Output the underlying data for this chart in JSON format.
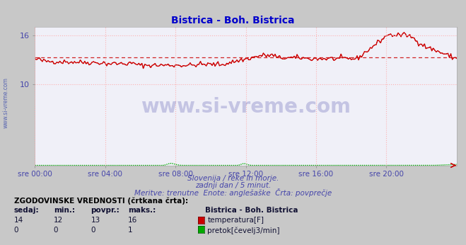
{
  "title": "Bistrica - Boh. Bistrica",
  "title_color": "#0000cc",
  "bg_color": "#c8c8c8",
  "plot_bg_color": "#f0f0f8",
  "grid_color": "#ffaaaa",
  "xlabel_color": "#4444aa",
  "ylabel_ticks": [
    10,
    16
  ],
  "ylim": [
    0,
    17
  ],
  "xlim": [
    0,
    288
  ],
  "xtick_positions": [
    0,
    48,
    96,
    144,
    192,
    240
  ],
  "xtick_labels": [
    "sre 00:00",
    "sre 04:00",
    "sre 08:00",
    "sre 12:00",
    "sre 16:00",
    "sre 20:00"
  ],
  "temp_color": "#cc0000",
  "flow_color": "#00aa00",
  "flow_base_color": "#0000cc",
  "subtitle1": "Slovenija / reke in morje.",
  "subtitle2": "zadnji dan / 5 minut.",
  "subtitle3": "Meritve: trenutne  Enote: anglešaške  Črta: povprečje",
  "legend_title": "ZGODOVINSKE VREDNOSTI (črtkana črta):",
  "legend_headers": [
    "sedaj:",
    "min.:",
    "povpr.:",
    "maks.:"
  ],
  "legend_station": "Bistrica - Boh. Bistrica",
  "legend_temp_label": "temperatura[F]",
  "legend_flow_label": "pretok[čevelj3/min]",
  "legend_temp_values": [
    "14",
    "12",
    "13",
    "16"
  ],
  "legend_flow_values": [
    "0",
    "0",
    "0",
    "1"
  ],
  "watermark": "www.si-vreme.com",
  "watermark_color": "#000088",
  "watermark_alpha": 0.18,
  "side_text": "www.si-vreme.com",
  "side_text_color": "#3344aa"
}
